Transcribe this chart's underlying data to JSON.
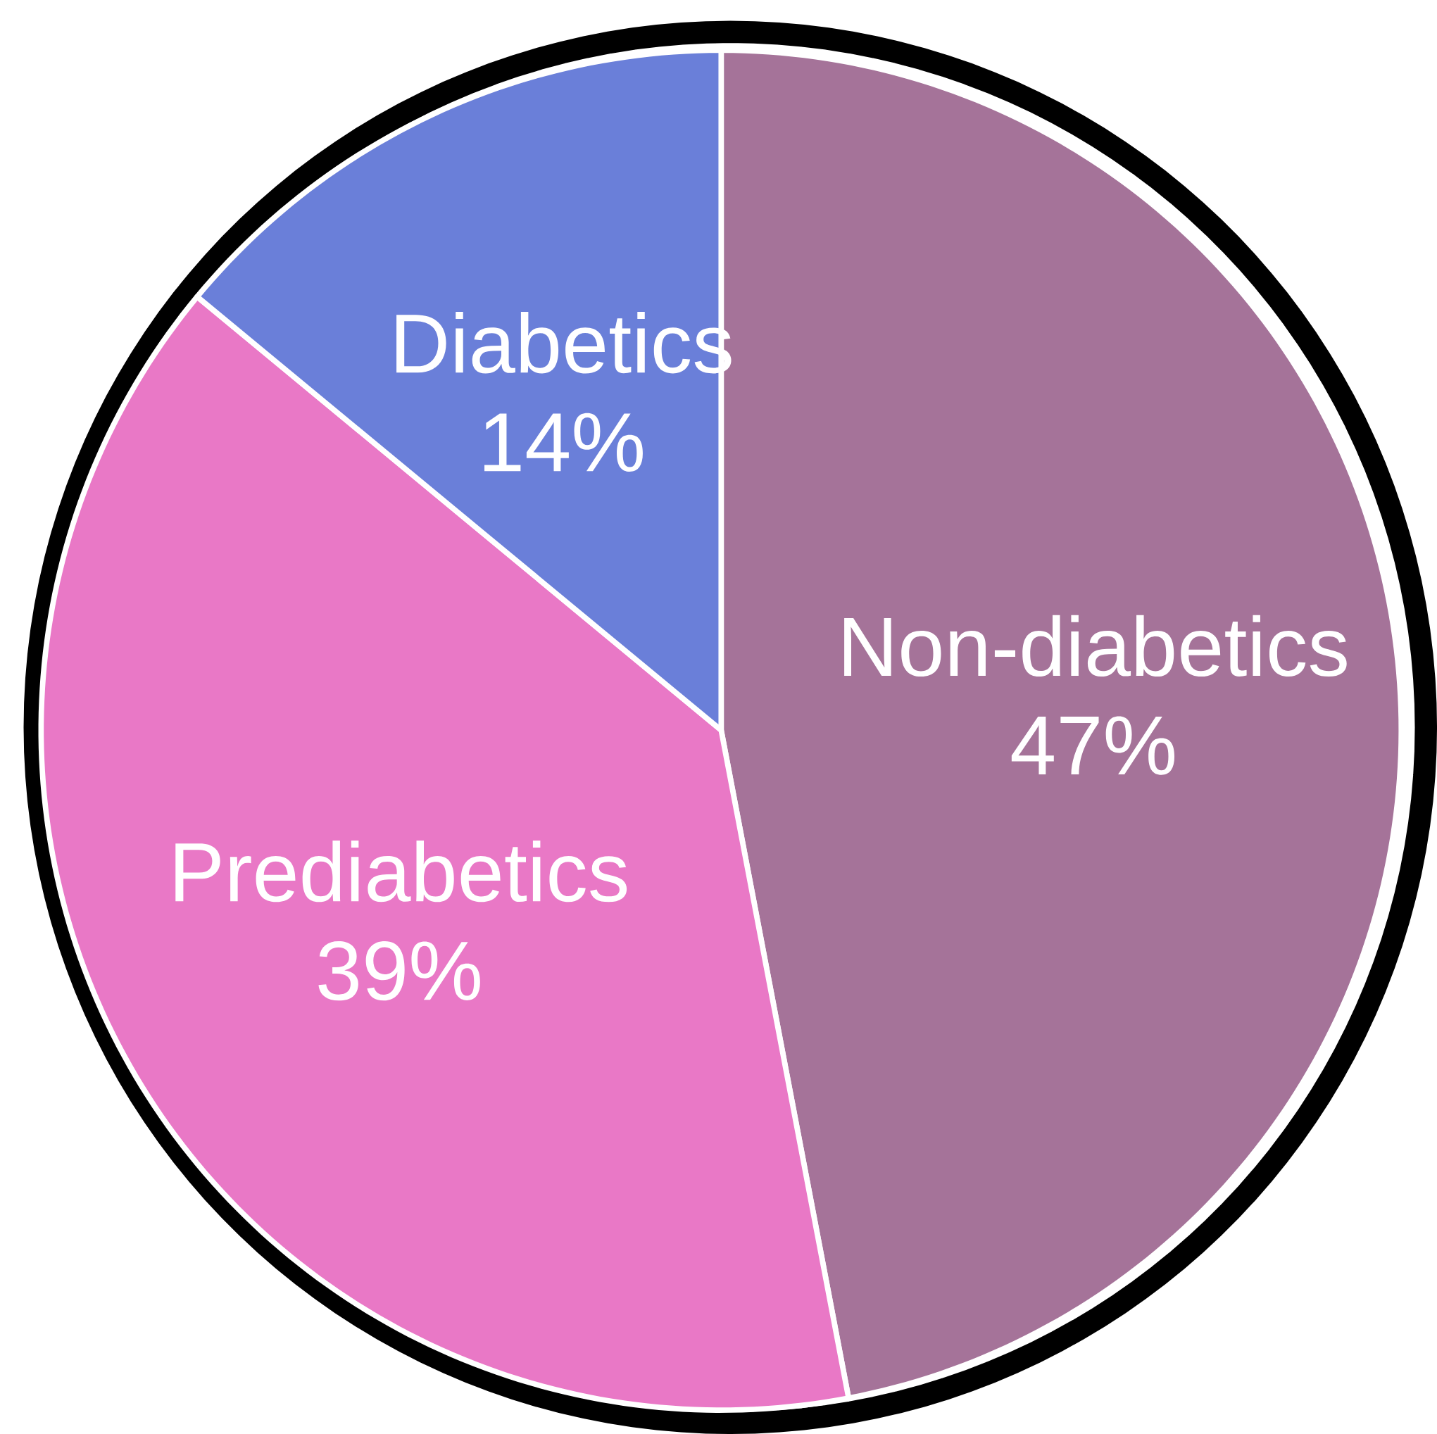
{
  "chart_data": {
    "type": "pie",
    "categories": [
      "Non-diabetics",
      "Prediabetics",
      "Diabetics"
    ],
    "values": [
      47,
      39,
      14
    ],
    "value_labels": [
      "47%",
      "39%",
      "14%"
    ],
    "colors": [
      "#a57399",
      "#e978c6",
      "#6a7fd9"
    ]
  }
}
